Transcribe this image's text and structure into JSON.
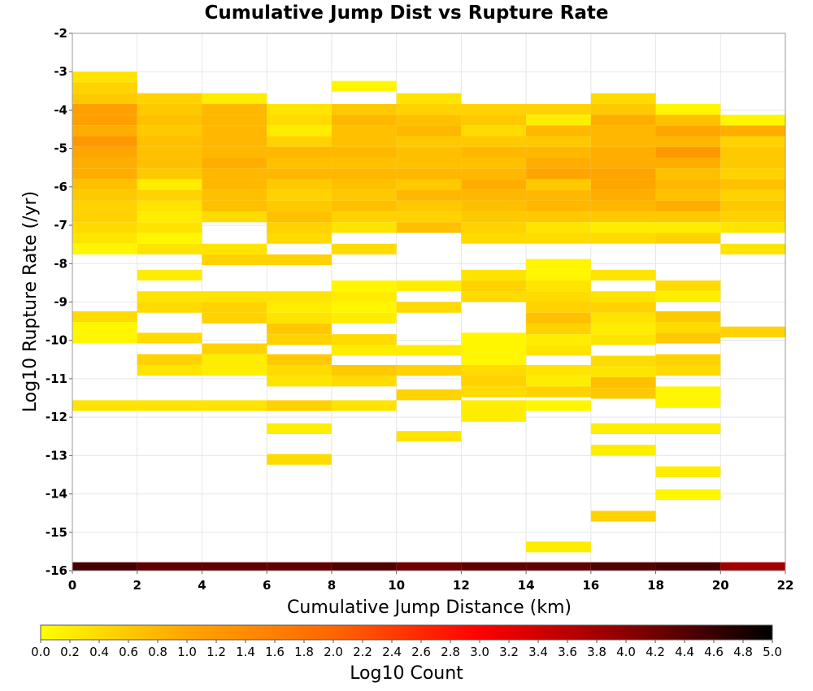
{
  "chart_data": {
    "type": "heatmap",
    "title": "Cumulative Jump Dist vs Rupture Rate",
    "xlabel": "Cumulative Jump Distance (km)",
    "ylabel": "Log10 Rupture Rate (/yr)",
    "xlim": [
      0,
      22
    ],
    "ylim": [
      -16,
      -2
    ],
    "x_ticks": [
      "0",
      "2",
      "4",
      "6",
      "8",
      "10",
      "12",
      "14",
      "16",
      "18",
      "20",
      "22"
    ],
    "y_ticks": [
      "-2",
      "-3",
      "-4",
      "-5",
      "-6",
      "-7",
      "-8",
      "-9",
      "-10",
      "-11",
      "-12",
      "-13",
      "-14",
      "-15",
      "-16"
    ],
    "x_bin_width": 2,
    "y_bin_height": 0.28,
    "grid": true,
    "colorbar": {
      "label": "Log10 Count",
      "min": 0.0,
      "max": 5.0,
      "ticks": [
        "0.0",
        "0.2",
        "0.4",
        "0.6",
        "0.8",
        "1.0",
        "1.2",
        "1.4",
        "1.6",
        "1.8",
        "2.0",
        "2.2",
        "2.4",
        "2.6",
        "2.8",
        "3.0",
        "3.2",
        "3.4",
        "3.6",
        "3.8",
        "4.0",
        "4.2",
        "4.4",
        "4.6",
        "4.8",
        "5.0"
      ],
      "colors": [
        "#ffff00",
        "#ffa500",
        "#ff6600",
        "#ff0000",
        "#8b0000",
        "#000000"
      ]
    },
    "columns": [
      {
        "x": 1,
        "cells": [
          [
            -3.14,
            0.3
          ],
          [
            -3.42,
            0.5
          ],
          [
            -3.7,
            0.6
          ],
          [
            -3.98,
            1.1
          ],
          [
            -4.26,
            1.1
          ],
          [
            -4.54,
            0.9
          ],
          [
            -4.82,
            1.2
          ],
          [
            -5.1,
            1.0
          ],
          [
            -5.38,
            0.9
          ],
          [
            -5.66,
            0.9
          ],
          [
            -5.94,
            0.7
          ],
          [
            -6.22,
            0.6
          ],
          [
            -6.5,
            0.5
          ],
          [
            -6.78,
            0.5
          ],
          [
            -7.06,
            0.4
          ],
          [
            -7.34,
            0.3
          ],
          [
            -7.62,
            0.1
          ],
          [
            -9.38,
            0.4
          ],
          [
            -9.66,
            0.1
          ],
          [
            -9.94,
            0.1
          ],
          [
            -11.7,
            0.3
          ]
        ]
      },
      {
        "x": 3,
        "cells": [
          [
            -3.7,
            0.5
          ],
          [
            -3.98,
            0.6
          ],
          [
            -4.26,
            0.7
          ],
          [
            -4.54,
            0.6
          ],
          [
            -4.82,
            0.7
          ],
          [
            -5.1,
            0.7
          ],
          [
            -5.38,
            0.7
          ],
          [
            -5.66,
            0.6
          ],
          [
            -5.94,
            0.2
          ],
          [
            -6.22,
            0.5
          ],
          [
            -6.5,
            0.3
          ],
          [
            -6.78,
            0.2
          ],
          [
            -7.06,
            0.3
          ],
          [
            -7.34,
            0.1
          ],
          [
            -7.62,
            0.3
          ],
          [
            -8.3,
            0.2
          ],
          [
            -8.86,
            0.3
          ],
          [
            -9.14,
            0.4
          ],
          [
            -9.94,
            0.4
          ],
          [
            -10.5,
            0.5
          ],
          [
            -10.78,
            0.3
          ],
          [
            -11.7,
            0.3
          ]
        ]
      },
      {
        "x": 5,
        "cells": [
          [
            -3.7,
            0.2
          ],
          [
            -3.98,
            0.8
          ],
          [
            -4.26,
            0.8
          ],
          [
            -4.54,
            0.8
          ],
          [
            -4.82,
            0.8
          ],
          [
            -5.1,
            0.8
          ],
          [
            -5.38,
            0.9
          ],
          [
            -5.66,
            0.8
          ],
          [
            -5.94,
            0.8
          ],
          [
            -6.22,
            0.7
          ],
          [
            -6.5,
            0.7
          ],
          [
            -6.78,
            0.4
          ],
          [
            -7.62,
            0.3
          ],
          [
            -7.9,
            0.5
          ],
          [
            -8.86,
            0.3
          ],
          [
            -9.14,
            0.5
          ],
          [
            -9.42,
            0.5
          ],
          [
            -10.22,
            0.5
          ],
          [
            -10.5,
            0.2
          ],
          [
            -10.78,
            0.2
          ],
          [
            -11.7,
            0.3
          ]
        ]
      },
      {
        "x": 7,
        "cells": [
          [
            -3.98,
            0.3
          ],
          [
            -4.26,
            0.4
          ],
          [
            -4.54,
            0.2
          ],
          [
            -4.82,
            0.5
          ],
          [
            -5.1,
            0.8
          ],
          [
            -5.38,
            0.7
          ],
          [
            -5.66,
            0.8
          ],
          [
            -5.94,
            0.6
          ],
          [
            -6.22,
            0.5
          ],
          [
            -6.5,
            0.6
          ],
          [
            -6.78,
            0.7
          ],
          [
            -7.06,
            0.5
          ],
          [
            -7.34,
            0.4
          ],
          [
            -7.9,
            0.5
          ],
          [
            -8.86,
            0.3
          ],
          [
            -9.14,
            0.2
          ],
          [
            -9.42,
            0.3
          ],
          [
            -9.7,
            0.6
          ],
          [
            -9.98,
            0.5
          ],
          [
            -10.5,
            0.6
          ],
          [
            -10.78,
            0.4
          ],
          [
            -11.06,
            0.3
          ],
          [
            -11.7,
            0.5
          ],
          [
            -12.3,
            0.2
          ],
          [
            -13.1,
            0.4
          ]
        ]
      },
      {
        "x": 9,
        "cells": [
          [
            -3.38,
            0.1
          ],
          [
            -3.98,
            0.6
          ],
          [
            -4.26,
            0.8
          ],
          [
            -4.54,
            0.7
          ],
          [
            -4.82,
            0.7
          ],
          [
            -5.1,
            0.8
          ],
          [
            -5.38,
            0.7
          ],
          [
            -5.66,
            0.8
          ],
          [
            -5.94,
            0.7
          ],
          [
            -6.22,
            0.6
          ],
          [
            -6.5,
            0.7
          ],
          [
            -6.78,
            0.5
          ],
          [
            -7.06,
            0.3
          ],
          [
            -7.62,
            0.4
          ],
          [
            -8.58,
            0.1
          ],
          [
            -8.86,
            0.2
          ],
          [
            -9.14,
            0.1
          ],
          [
            -9.42,
            0.2
          ],
          [
            -9.98,
            0.4
          ],
          [
            -10.26,
            0.2
          ],
          [
            -10.78,
            0.6
          ],
          [
            -11.06,
            0.4
          ],
          [
            -11.7,
            0.3
          ]
        ]
      },
      {
        "x": 11,
        "cells": [
          [
            -3.7,
            0.3
          ],
          [
            -3.98,
            0.5
          ],
          [
            -4.26,
            0.7
          ],
          [
            -4.54,
            0.8
          ],
          [
            -4.82,
            0.6
          ],
          [
            -5.1,
            0.7
          ],
          [
            -5.38,
            0.7
          ],
          [
            -5.66,
            0.8
          ],
          [
            -5.94,
            0.6
          ],
          [
            -6.22,
            0.8
          ],
          [
            -6.5,
            0.6
          ],
          [
            -6.78,
            0.5
          ],
          [
            -7.06,
            0.7
          ],
          [
            -8.58,
            0.2
          ],
          [
            -9.14,
            0.4
          ],
          [
            -10.26,
            0.2
          ],
          [
            -10.78,
            0.5
          ],
          [
            -11.42,
            0.5
          ],
          [
            -12.5,
            0.3
          ]
        ]
      },
      {
        "x": 13,
        "cells": [
          [
            -3.98,
            0.5
          ],
          [
            -4.26,
            0.6
          ],
          [
            -4.54,
            0.4
          ],
          [
            -4.82,
            0.6
          ],
          [
            -5.1,
            0.8
          ],
          [
            -5.38,
            0.7
          ],
          [
            -5.66,
            0.8
          ],
          [
            -5.94,
            0.9
          ],
          [
            -6.22,
            0.8
          ],
          [
            -6.5,
            0.7
          ],
          [
            -6.78,
            0.6
          ],
          [
            -7.06,
            0.5
          ],
          [
            -7.34,
            0.4
          ],
          [
            -8.3,
            0.3
          ],
          [
            -8.58,
            0.5
          ],
          [
            -8.86,
            0.4
          ],
          [
            -9.94,
            0.1
          ],
          [
            -10.22,
            0.1
          ],
          [
            -10.5,
            0.1
          ],
          [
            -10.78,
            0.4
          ],
          [
            -11.06,
            0.5
          ],
          [
            -11.34,
            0.4
          ],
          [
            -11.7,
            0.2
          ],
          [
            -11.98,
            0.2
          ]
        ]
      },
      {
        "x": 15,
        "cells": [
          [
            -3.98,
            0.5
          ],
          [
            -4.26,
            0.2
          ],
          [
            -4.54,
            0.8
          ],
          [
            -4.82,
            0.6
          ],
          [
            -5.1,
            0.8
          ],
          [
            -5.38,
            0.9
          ],
          [
            -5.66,
            1.0
          ],
          [
            -5.94,
            0.6
          ],
          [
            -6.22,
            0.8
          ],
          [
            -6.5,
            0.8
          ],
          [
            -6.78,
            0.6
          ],
          [
            -7.06,
            0.3
          ],
          [
            -7.34,
            0.4
          ],
          [
            -8.02,
            0.1
          ],
          [
            -8.3,
            0.1
          ],
          [
            -8.58,
            0.3
          ],
          [
            -8.86,
            0.4
          ],
          [
            -9.14,
            0.5
          ],
          [
            -9.42,
            0.7
          ],
          [
            -9.7,
            0.5
          ],
          [
            -9.98,
            0.2
          ],
          [
            -10.26,
            0.3
          ],
          [
            -10.78,
            0.3
          ],
          [
            -11.06,
            0.2
          ],
          [
            -11.34,
            0.5
          ],
          [
            -11.7,
            0.1
          ],
          [
            -15.38,
            0.2
          ]
        ]
      },
      {
        "x": 17,
        "cells": [
          [
            -3.7,
            0.4
          ],
          [
            -3.98,
            0.6
          ],
          [
            -4.26,
            0.9
          ],
          [
            -4.54,
            0.8
          ],
          [
            -4.82,
            0.8
          ],
          [
            -5.1,
            0.9
          ],
          [
            -5.38,
            0.9
          ],
          [
            -5.66,
            1.0
          ],
          [
            -5.94,
            1.0
          ],
          [
            -6.22,
            0.9
          ],
          [
            -6.5,
            0.8
          ],
          [
            -6.78,
            0.6
          ],
          [
            -7.06,
            0.2
          ],
          [
            -7.34,
            0.4
          ],
          [
            -8.3,
            0.3
          ],
          [
            -8.86,
            0.3
          ],
          [
            -9.14,
            0.5
          ],
          [
            -9.42,
            0.3
          ],
          [
            -9.7,
            0.2
          ],
          [
            -9.98,
            0.3
          ],
          [
            -10.54,
            0.4
          ],
          [
            -10.82,
            0.3
          ],
          [
            -11.1,
            0.7
          ],
          [
            -11.38,
            0.6
          ],
          [
            -12.3,
            0.2
          ],
          [
            -12.86,
            0.2
          ],
          [
            -14.58,
            0.5
          ]
        ]
      },
      {
        "x": 19,
        "cells": [
          [
            -3.98,
            0.1
          ],
          [
            -4.26,
            0.7
          ],
          [
            -4.54,
            1.0
          ],
          [
            -4.82,
            0.8
          ],
          [
            -5.1,
            1.2
          ],
          [
            -5.38,
            0.9
          ],
          [
            -5.66,
            0.7
          ],
          [
            -5.94,
            0.8
          ],
          [
            -6.22,
            0.7
          ],
          [
            -6.5,
            0.9
          ],
          [
            -6.78,
            0.6
          ],
          [
            -7.06,
            0.2
          ],
          [
            -7.34,
            0.5
          ],
          [
            -8.58,
            0.4
          ],
          [
            -8.86,
            0.2
          ],
          [
            -9.38,
            0.6
          ],
          [
            -9.66,
            0.4
          ],
          [
            -9.94,
            0.6
          ],
          [
            -10.5,
            0.5
          ],
          [
            -10.78,
            0.4
          ],
          [
            -11.34,
            0.1
          ],
          [
            -11.62,
            0.1
          ],
          [
            -12.3,
            0.2
          ],
          [
            -13.42,
            0.2
          ],
          [
            -14.02,
            0.1
          ]
        ]
      },
      {
        "x": 21,
        "cells": [
          [
            -4.26,
            0.1
          ],
          [
            -4.54,
            0.9
          ],
          [
            -4.82,
            0.5
          ],
          [
            -5.1,
            0.6
          ],
          [
            -5.38,
            0.6
          ],
          [
            -5.66,
            0.5
          ],
          [
            -5.94,
            0.7
          ],
          [
            -6.22,
            0.5
          ],
          [
            -6.5,
            0.6
          ],
          [
            -6.78,
            0.5
          ],
          [
            -7.06,
            0.3
          ],
          [
            -7.62,
            0.3
          ],
          [
            -9.78,
            0.5
          ]
        ]
      }
    ],
    "bottom_row": {
      "y": -15.92,
      "values": [
        4.5,
        4.3,
        4.3,
        4.3,
        4.4,
        4.2,
        4.3,
        4.3,
        4.4,
        4.5,
        3.8
      ]
    }
  }
}
